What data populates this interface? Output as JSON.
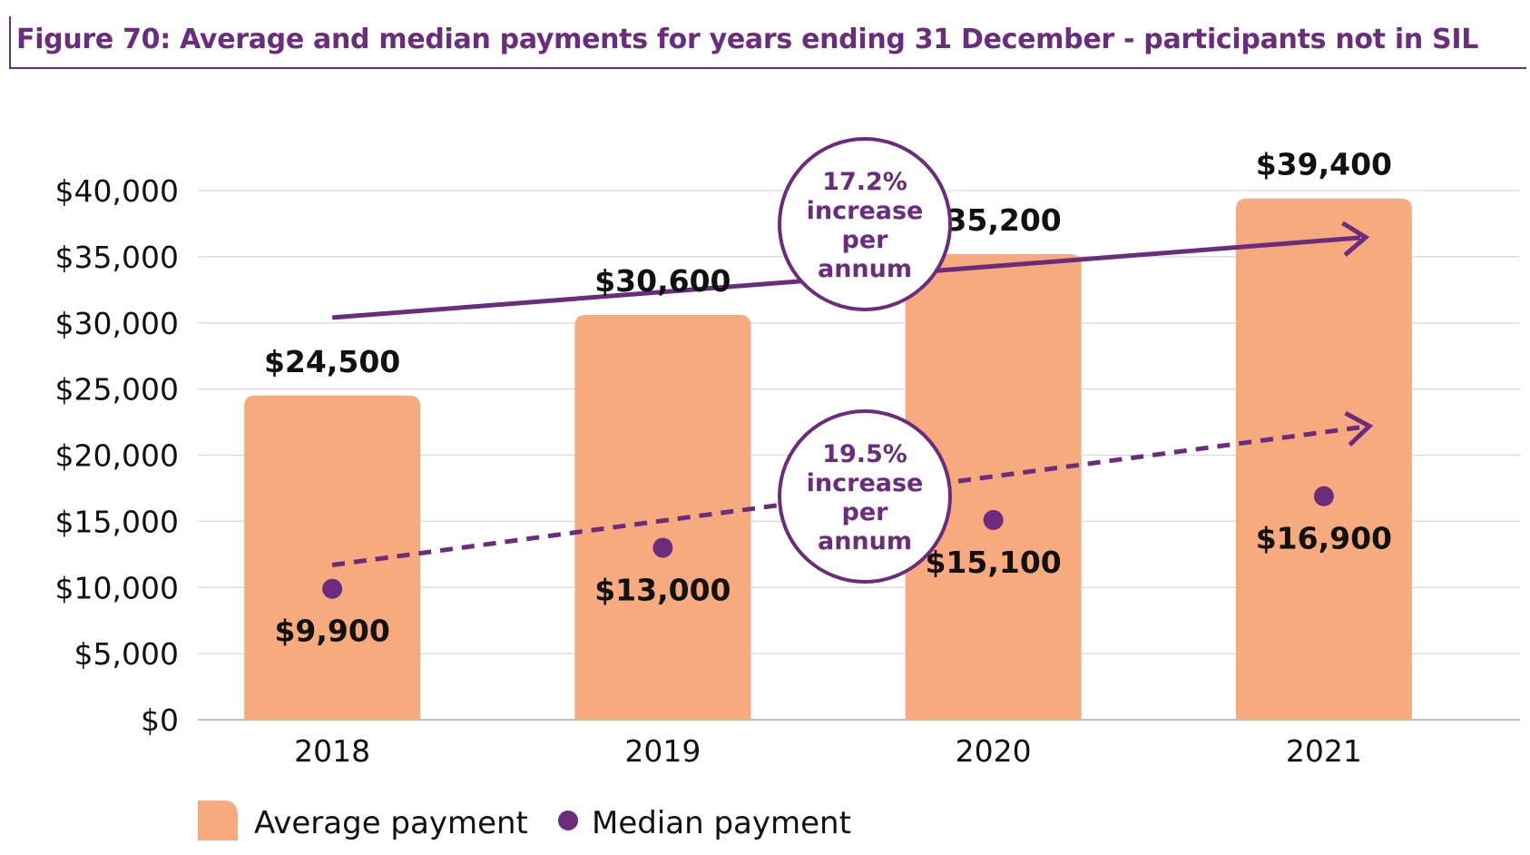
{
  "title": "Figure 70: Average and median payments for years ending 31 December - participants not in SIL",
  "colors": {
    "bar": "#f7aa7e",
    "median": "#6b2c7e",
    "accent": "#6b2c7e",
    "grid": "#d9d9d9"
  },
  "chart_data": {
    "type": "bar",
    "categories": [
      "2018",
      "2019",
      "2020",
      "2021"
    ],
    "ylim": [
      0,
      40000
    ],
    "y_ticks": [
      0,
      5000,
      10000,
      15000,
      20000,
      25000,
      30000,
      35000,
      40000
    ],
    "y_tick_labels": [
      "$0",
      "$5,000",
      "$10,000",
      "$15,000",
      "$20,000",
      "$25,000",
      "$30,000",
      "$35,000",
      "$40,000"
    ],
    "grid": true,
    "legend_position": "bottom-left",
    "series": [
      {
        "name": "Average payment",
        "type": "bar",
        "values": [
          24500,
          30600,
          35200,
          39400
        ],
        "labels": [
          "$24,500",
          "$30,600",
          "$35,200",
          "$39,400"
        ]
      },
      {
        "name": "Median payment",
        "type": "scatter",
        "values": [
          9900,
          13000,
          15100,
          16900
        ],
        "labels": [
          "$9,900",
          "$13,000",
          "$15,100",
          "$16,900"
        ]
      }
    ],
    "annotations": [
      {
        "series": "Average payment",
        "line_style": "solid",
        "lines": [
          "17.2%",
          "increase",
          "per",
          "annum"
        ]
      },
      {
        "series": "Median payment",
        "line_style": "dashed",
        "lines": [
          "19.5%",
          "increase",
          "per",
          "annum"
        ]
      }
    ]
  }
}
